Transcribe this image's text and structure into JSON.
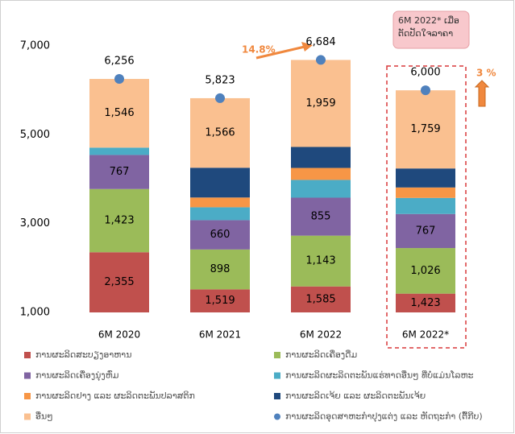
{
  "chart_data": {
    "type": "stacked_bar",
    "categories": [
      "6M 2020",
      "6M 2021",
      "6M 2022",
      "6M 2022*"
    ],
    "series": [
      {
        "name": "ການຜະລິດສະບຽງອາຫານ",
        "color": "#c0504d",
        "values": [
          2355,
          1519,
          1585,
          1423
        ],
        "value_labels": [
          "2,355",
          "1,519",
          "1,585",
          "1,423"
        ]
      },
      {
        "name": "ການຜະລິດເຄື່ອງດື່ມ",
        "color": "#9bbb59",
        "values": [
          1423,
          898,
          1143,
          1026
        ],
        "value_labels": [
          "1,423",
          "898",
          "1,143",
          "1,026"
        ]
      },
      {
        "name": "ການຜະລິດເຄື່ອງນຸ່ງຫົ່ມ",
        "color": "#8064a2",
        "values": [
          767,
          660,
          855,
          767
        ],
        "value_labels": [
          "767",
          "660",
          "855",
          "767"
        ]
      },
      {
        "name": "ການຜະລິດຜະລິດຕະພັນແຮ່ທາດອື່ນໆ ທີ່ບໍ່ແມ່ນໂລຫະ",
        "color": "#4bacc6",
        "values": [
          165,
          290,
          400,
          362
        ]
      },
      {
        "name": "ການຜະລິດຢາງ ແລະ ຜະລິດຕະພັນປລາສຕິກ",
        "color": "#f79646",
        "values": [
          null,
          220,
          270,
          235
        ]
      },
      {
        "name": "ການຜະລິດເຈ້ຍ ແລະ ຜະລິດຕະພັນເຈ້ຍ",
        "color": "#1f497d",
        "values": [
          null,
          670,
          472,
          428
        ]
      },
      {
        "name": "ອື່ນໆ",
        "color": "#fac090",
        "values": [
          1546,
          1566,
          1959,
          1759
        ],
        "value_labels": [
          "1,546",
          "1,566",
          "1,959",
          "1,759"
        ]
      }
    ],
    "totals": {
      "name": "ການຜະລິດອຸດສາຫະກຳປຸງແຕ່ງ ແລະ ຫັດຖະກຳ (ຕື້ກີບ)",
      "color": "#4f81bd",
      "values": [
        6256,
        5823,
        6684,
        6000
      ],
      "value_labels": [
        "6,256",
        "5,823",
        "6,684",
        "6,000"
      ]
    },
    "ylim": [
      1000,
      7000
    ],
    "yticks": [
      {
        "value": 1000,
        "label": "1,000"
      },
      {
        "value": 3000,
        "label": "3,000"
      },
      {
        "value": 5000,
        "label": "5,000"
      },
      {
        "value": 7000,
        "label": "7,000"
      }
    ],
    "annotations": [
      "14.8%",
      "3 %",
      "6M  2022* ເມື່ອຕັດປັດໃຈລາຄາ"
    ],
    "grid": false
  }
}
